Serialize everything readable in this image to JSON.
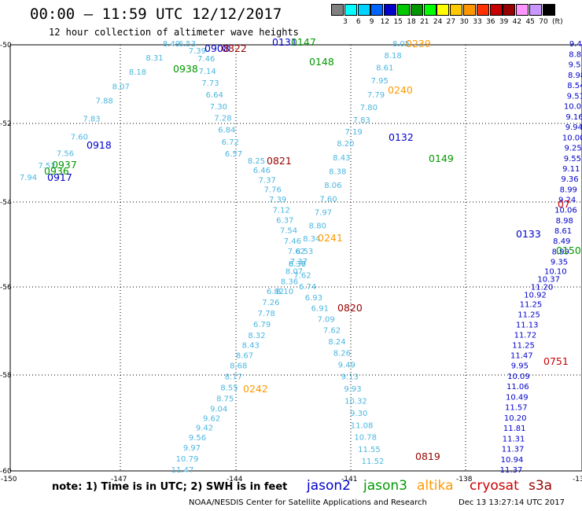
{
  "title": "00:00 – 11:59 UTC 12/12/2017",
  "subtitle": "12 hour collection of altimeter wave heights",
  "scale": {
    "unit": "(ft)",
    "labels": [
      "3",
      "6",
      "9",
      "12",
      "15",
      "18",
      "21",
      "24",
      "27",
      "30",
      "33",
      "36",
      "39",
      "42",
      "45",
      "70"
    ],
    "colors": [
      "#808080",
      "#00ffff",
      "#00d2ff",
      "#0064ff",
      "#0000c8",
      "#00c800",
      "#009600",
      "#00ff00",
      "#ffff00",
      "#ffc800",
      "#ff9600",
      "#ff3200",
      "#c80000",
      "#960000",
      "#ff96ff",
      "#c896ff",
      "#000000"
    ]
  },
  "axes": {
    "x_ticks": [
      "-150",
      "-147",
      "-144",
      "-141",
      "-138",
      "-135"
    ],
    "y_ticks": [
      "-50",
      "-52",
      "-54",
      "-56",
      "-58",
      "-60"
    ]
  },
  "note": "note: 1) Time is in UTC; 2) SWH is in feet",
  "legend": [
    {
      "name": "jason2",
      "color": "#0000cc"
    },
    {
      "name": "jason3",
      "color": "#009900"
    },
    {
      "name": "altika",
      "color": "#ff9900"
    },
    {
      "name": "cryosat",
      "color": "#cc0000"
    },
    {
      "name": "s3a",
      "color": "#990000"
    }
  ],
  "footer_left": "NOAA/NESDIS Center for Satellite Applications and Research",
  "footer_right": "Dec 13 13:27:14 UTC 2017",
  "tracks": [
    {
      "name": "track-A",
      "color": "#4cb6e0",
      "values": [
        "6.53",
        "7.39",
        "7.46",
        "7.14",
        "7.73",
        "6.64",
        "7.30",
        "7.28",
        "6.84",
        "6.72",
        "6.57"
      ]
    },
    {
      "name": "track-A2",
      "color": "#4cb6e0",
      "values": [
        "8.25",
        "6.46",
        "7.37",
        "7.76",
        "7.39",
        "7.12",
        "6.37",
        "7.54",
        "7.46",
        "7.62",
        "7.37",
        "8.07",
        "8.36",
        "8.10"
      ]
    },
    {
      "name": "track-B",
      "color": "#4cb6e0",
      "values": [
        "8.05",
        "8.18",
        "8.61",
        "7.95",
        "7.79",
        "7.80",
        "7.83",
        "7.19",
        "8.20",
        "8.43",
        "8.38",
        "8.06",
        "7.60",
        "7.97",
        "8.80",
        "8.34",
        "8.53",
        "8.37"
      ]
    },
    {
      "name": "track-B2",
      "color": "#4cb6e0",
      "values": [
        "6.36",
        "7.62",
        "6.74",
        "6.93",
        "6.91",
        "7.09",
        "7.62",
        "8.24",
        "8.26",
        "9.49",
        "9.13",
        "9.93",
        "10.32",
        "9.30",
        "11.08",
        "10.78",
        "11.55",
        "11.52"
      ]
    },
    {
      "name": "track-C",
      "color": "#4cb6e0",
      "values": [
        "6.82",
        "7.26",
        "7.78",
        "6.79",
        "8.32",
        "8.43",
        "8.67",
        "8.68",
        "8.77",
        "8.55",
        "8.75",
        "9.04",
        "9.62",
        "9.42",
        "9.56",
        "9.97",
        "10.79",
        "11.47"
      ]
    },
    {
      "name": "track-D",
      "color": "#0000cc",
      "values": [
        "9.43",
        "8.86",
        "9.51",
        "8.98",
        "8.54",
        "9.51",
        "10.03",
        "9.16",
        "9.94",
        "10.00",
        "9.25",
        "9.55",
        "9.11",
        "9.36",
        "8.99",
        "9.24",
        "10.06",
        "8.98",
        "8.61",
        "8.49",
        "8.99",
        "9.35",
        "10.10",
        "10.37",
        "11.20",
        "10.92",
        "11.25",
        "11.25",
        "11.13",
        "11.72",
        "11.25",
        "11.47",
        "9.95",
        "10.09",
        "11.06",
        "10.49",
        "11.57",
        "10.20",
        "11.81",
        "11.31",
        "11.37",
        "10.94",
        "11.37"
      ]
    },
    {
      "name": "track-E",
      "color": "#4cb6e0",
      "values": [
        "7.94",
        "7.52",
        "7.56",
        "7.60",
        "7.83",
        "7.88",
        "8.07",
        "8.18",
        "8.31",
        "8.49"
      ]
    }
  ],
  "time_labels": [
    {
      "text": "0938",
      "color": "#009900"
    },
    {
      "text": "0918",
      "color": "#0000cc"
    },
    {
      "text": "0937",
      "color": "#009900"
    },
    {
      "text": "0936",
      "color": "#009900"
    },
    {
      "text": "0917",
      "color": "#0000cc"
    },
    {
      "text": "0908",
      "color": "#0000cc"
    },
    {
      "text": "0822",
      "color": "#990000"
    },
    {
      "text": "0131",
      "color": "#0000cc"
    },
    {
      "text": "0147",
      "color": "#009900"
    },
    {
      "text": "0148",
      "color": "#009900"
    },
    {
      "text": "0239",
      "color": "#ff9900"
    },
    {
      "text": "0240",
      "color": "#ff9900"
    },
    {
      "text": "0132",
      "color": "#0000cc"
    },
    {
      "text": "0149",
      "color": "#009900"
    },
    {
      "text": "0821",
      "color": "#990000"
    },
    {
      "text": "0241",
      "color": "#ff9900"
    },
    {
      "text": "0133",
      "color": "#0000cc"
    },
    {
      "text": "0150",
      "color": "#009900"
    },
    {
      "text": "0820",
      "color": "#990000"
    },
    {
      "text": "0242",
      "color": "#ff9900"
    },
    {
      "text": "0751",
      "color": "#cc0000"
    },
    {
      "text": "0819",
      "color": "#990000"
    },
    {
      "text": "07",
      "color": "#cc0000"
    }
  ]
}
